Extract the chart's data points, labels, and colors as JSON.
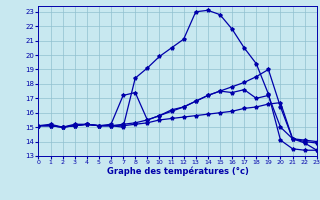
{
  "xlabel": "Graphe des températures (°c)",
  "bg_color": "#c8e8f0",
  "grid_color": "#90c0d0",
  "line_color": "#0000aa",
  "xlim": [
    0,
    23
  ],
  "ylim": [
    13,
    23.4
  ],
  "xticks": [
    0,
    1,
    2,
    3,
    4,
    5,
    6,
    7,
    8,
    9,
    10,
    11,
    12,
    13,
    14,
    15,
    16,
    17,
    18,
    19,
    20,
    21,
    22,
    23
  ],
  "yticks": [
    13,
    14,
    15,
    16,
    17,
    18,
    19,
    20,
    21,
    22,
    23
  ],
  "series": [
    {
      "x": [
        0,
        1,
        2,
        3,
        4,
        5,
        6,
        7,
        8,
        9,
        10,
        11,
        12,
        13,
        14,
        15,
        16,
        17,
        18,
        19,
        20,
        21,
        22,
        23
      ],
      "y": [
        15.1,
        15.2,
        15.0,
        15.1,
        15.2,
        15.1,
        15.1,
        15.0,
        18.4,
        19.1,
        19.9,
        20.5,
        21.1,
        23.0,
        23.1,
        22.8,
        21.8,
        20.5,
        19.4,
        17.3,
        14.1,
        13.5,
        13.4,
        13.4
      ]
    },
    {
      "x": [
        0,
        1,
        2,
        3,
        4,
        5,
        6,
        7,
        8,
        9,
        10,
        11,
        12,
        13,
        14,
        15,
        16,
        17,
        18,
        19,
        20,
        21,
        22,
        23
      ],
      "y": [
        15.1,
        15.1,
        15.0,
        15.2,
        15.2,
        15.1,
        15.2,
        17.2,
        17.4,
        15.5,
        15.8,
        16.2,
        16.4,
        16.8,
        17.2,
        17.5,
        17.4,
        17.6,
        17.0,
        17.2,
        15.0,
        14.2,
        14.1,
        14.0
      ]
    },
    {
      "x": [
        0,
        1,
        2,
        3,
        4,
        5,
        6,
        7,
        8,
        9,
        10,
        11,
        12,
        13,
        14,
        15,
        16,
        17,
        18,
        19,
        20,
        21,
        22,
        23
      ],
      "y": [
        15.1,
        15.1,
        15.0,
        15.1,
        15.2,
        15.1,
        15.1,
        15.2,
        15.3,
        15.5,
        15.8,
        16.1,
        16.4,
        16.8,
        17.2,
        17.5,
        17.8,
        18.1,
        18.5,
        19.0,
        16.4,
        14.2,
        14.0,
        13.9
      ]
    },
    {
      "x": [
        0,
        1,
        2,
        3,
        4,
        5,
        6,
        7,
        8,
        9,
        10,
        11,
        12,
        13,
        14,
        15,
        16,
        17,
        18,
        19,
        20,
        21,
        22,
        23
      ],
      "y": [
        15.1,
        15.1,
        15.0,
        15.1,
        15.2,
        15.1,
        15.1,
        15.1,
        15.2,
        15.3,
        15.5,
        15.6,
        15.7,
        15.8,
        15.9,
        16.0,
        16.1,
        16.3,
        16.4,
        16.6,
        16.7,
        14.2,
        13.9,
        13.4
      ]
    }
  ]
}
